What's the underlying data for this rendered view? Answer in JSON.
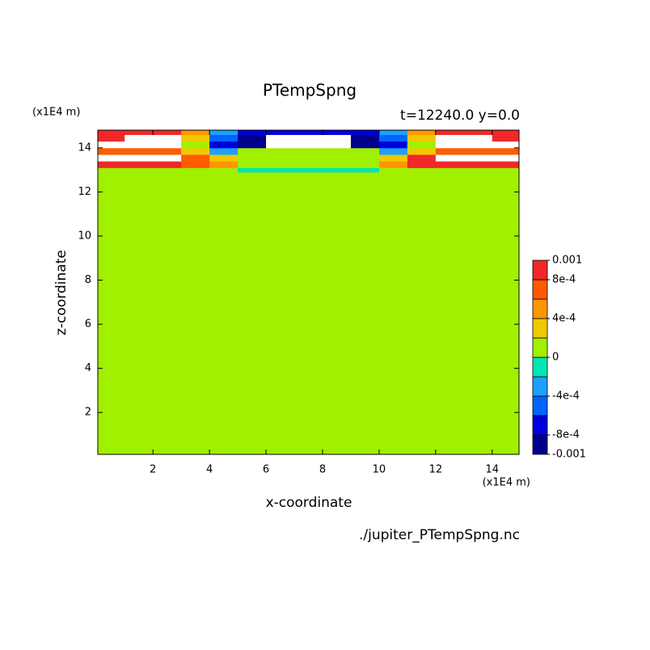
{
  "chart_data": {
    "type": "contour",
    "title": "PTempSpng",
    "subtitle": "t=12240.0 y=0.0",
    "x_label": "x-coordinate",
    "y_label": "z-coordinate",
    "x_unit": "(x1E4 m)",
    "y_unit": "(x1E4 m)",
    "source": "./jupiter_PTempSpng.nc",
    "xlim": [
      0.05,
      14.95
    ],
    "ylim": [
      0.1,
      14.8
    ],
    "xticks": [
      2,
      4,
      6,
      8,
      10,
      12,
      14
    ],
    "yticks": [
      2,
      4,
      6,
      8,
      10,
      12,
      14
    ],
    "x_edges": [
      0.05,
      1,
      2,
      3,
      4,
      5,
      6,
      7,
      8,
      9,
      10,
      11,
      12,
      13,
      14,
      14.95
    ],
    "z_edges": [
      0.1,
      12.9,
      13.1,
      13.4,
      13.7,
      14.0,
      14.3,
      14.6,
      14.8
    ],
    "z_values": [
      [
        0.0001,
        0.0001,
        0.0001,
        0.0001,
        0.0001,
        0.0001,
        0.0001,
        0.0001,
        0.0001,
        0.0001,
        0.0001,
        0.0001,
        0.0001,
        0.0001,
        0.0001
      ],
      [
        0.0001,
        0.0001,
        0.0001,
        0.0001,
        0.0001,
        -0.0001,
        -0.0001,
        -0.0001,
        -0.0001,
        -0.0001,
        0.0001,
        0.0001,
        0.0001,
        0.0001,
        0.0001
      ],
      [
        0.0009,
        0.0009,
        0.0009,
        0.0007,
        0.0005,
        0.0001,
        0.0001,
        0.0001,
        0.0001,
        0.0001,
        0.0005,
        0.0009,
        0.0009,
        0.0009,
        0.0009
      ],
      [
        0.0012,
        0.0012,
        0.0012,
        0.0007,
        0.0003,
        0.0001,
        0.0001,
        0.0001,
        0.0001,
        0.0001,
        0.0003,
        0.0009,
        0.0012,
        0.0012,
        0.0012
      ],
      [
        0.0007,
        0.0007,
        0.0007,
        0.0003,
        -0.0003,
        0.0001,
        0.0001,
        0.0001,
        0.0001,
        0.0001,
        -0.0003,
        0.0003,
        0.0007,
        0.0007,
        0.0007
      ],
      [
        0.0012,
        0.0012,
        0.0012,
        0.0001,
        -0.0007,
        -0.0009,
        -0.0012,
        -0.0012,
        -0.0012,
        -0.0009,
        -0.0007,
        0.0001,
        0.0012,
        0.0012,
        0.0012
      ],
      [
        0.0009,
        0.0012,
        0.0012,
        0.0003,
        -0.0005,
        -0.0009,
        -0.0012,
        -0.0012,
        -0.0012,
        -0.0009,
        -0.0005,
        0.0003,
        0.0012,
        0.0012,
        0.0009
      ],
      [
        0.0009,
        0.0009,
        0.0009,
        0.0005,
        -0.0003,
        -0.0007,
        -0.0007,
        -0.0007,
        -0.0007,
        -0.0007,
        -0.0003,
        0.0005,
        0.0009,
        0.0009,
        0.0009
      ]
    ],
    "levels": [
      -0.001,
      -0.0008,
      -0.0006,
      -0.0004,
      -0.0002,
      0,
      0.0002,
      0.0004,
      0.0006,
      0.0008,
      0.001
    ],
    "colors": [
      "#00008c",
      "#0000dc",
      "#0064ff",
      "#1ea0ff",
      "#00e6b4",
      "#a0f000",
      "#f0c800",
      "#ff9600",
      "#ff5a00",
      "#f02828"
    ],
    "out_of_range_color": "#ffffff",
    "colorbar_ticks": [
      {
        "value": 0.001,
        "label": "0.001"
      },
      {
        "value": 0.0008,
        "label": "8e-4"
      },
      {
        "value": 0.0004,
        "label": "4e-4"
      },
      0,
      {
        "value": -0.0004,
        "label": "-4e-4"
      },
      {
        "value": -0.0008,
        "label": "-8e-4"
      },
      {
        "value": -0.001,
        "label": "-0.001"
      }
    ]
  }
}
